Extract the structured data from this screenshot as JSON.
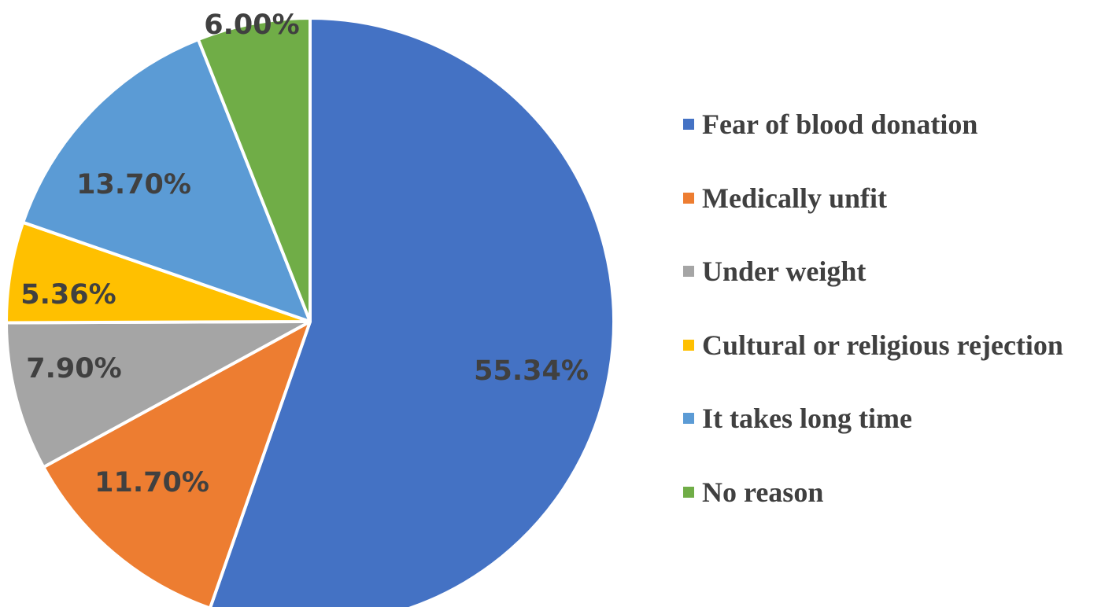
{
  "chart_data": {
    "type": "pie",
    "start_angle_deg": 0,
    "direction": "clockwise",
    "legend_position": "right",
    "slices": [
      {
        "label": "Fear of blood donation",
        "value": 55.34,
        "display": "55.34%",
        "color": "#4472C4"
      },
      {
        "label": "Medically unfit",
        "value": 11.7,
        "display": "11.70%",
        "color": "#ED7D31"
      },
      {
        "label": "Under weight",
        "value": 7.9,
        "display": "7.90%",
        "color": "#A5A5A5"
      },
      {
        "label": "Cultural or religious rejection",
        "value": 5.36,
        "display": "5.36%",
        "color": "#FFC000"
      },
      {
        "label": "It takes long time",
        "value": 13.7,
        "display": "13.70%",
        "color": "#5B9BD5"
      },
      {
        "label": "No reason",
        "value": 6.0,
        "display": "6.00%",
        "color": "#70AD47"
      }
    ]
  }
}
